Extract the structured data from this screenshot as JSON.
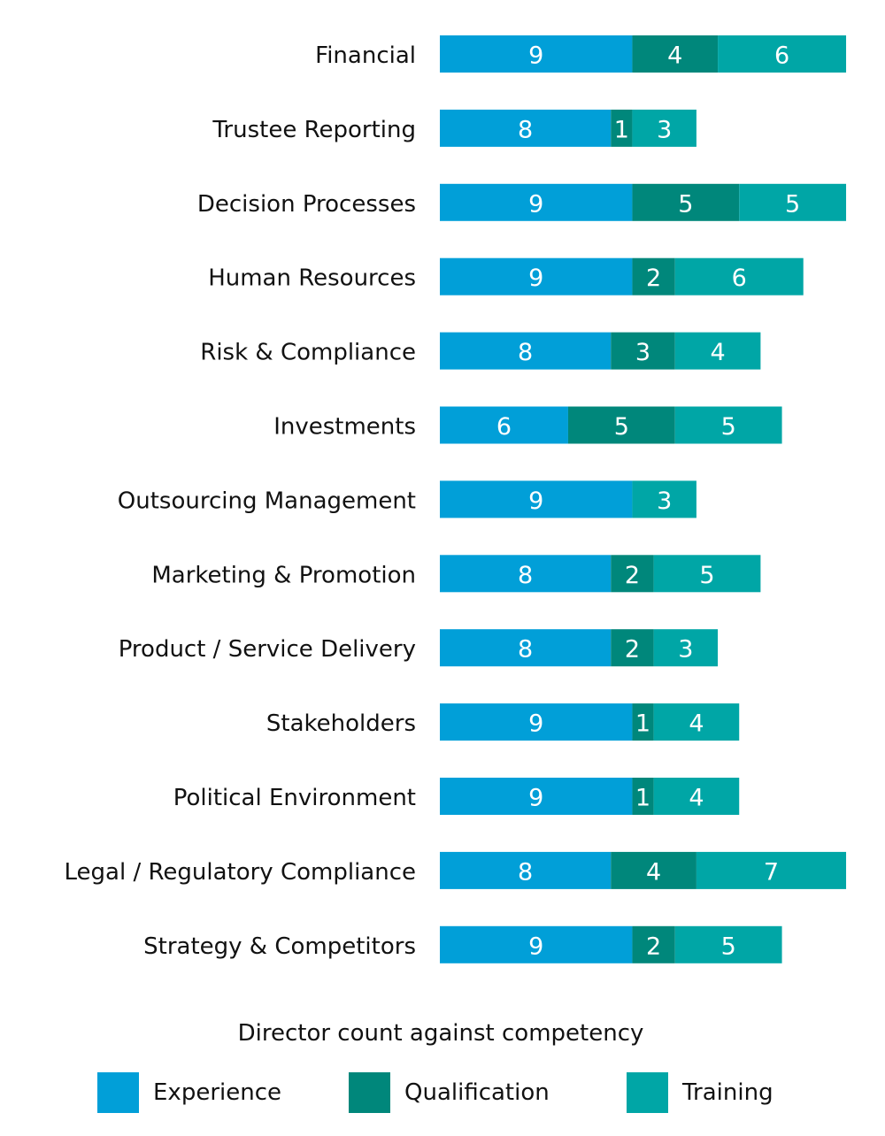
{
  "chart_data": {
    "type": "stacked-bar-horizontal",
    "categories": [
      "Financial",
      "Trustee Reporting",
      "Decision Processes",
      "Human Resources",
      "Risk & Compliance",
      "Investments",
      "Outsourcing Management",
      "Marketing & Promotion",
      "Product / Service Delivery",
      "Stakeholders",
      "Political Environment",
      "Legal / Regulatory Compliance",
      "Strategy & Competitors"
    ],
    "series": [
      {
        "name": "Experience",
        "color": "#019fd8",
        "values": [
          9,
          8,
          9,
          9,
          8,
          6,
          9,
          8,
          8,
          9,
          9,
          8,
          9
        ]
      },
      {
        "name": "Qualification",
        "color": "#00877b",
        "values": [
          4,
          1,
          5,
          2,
          3,
          5,
          null,
          2,
          2,
          1,
          1,
          4,
          2
        ]
      },
      {
        "name": "Training",
        "color": "#00a6a6",
        "values": [
          6,
          3,
          5,
          6,
          4,
          5,
          3,
          5,
          3,
          4,
          4,
          7,
          5
        ]
      }
    ],
    "legend_title": "Director count against competency",
    "legend": "bottom"
  }
}
